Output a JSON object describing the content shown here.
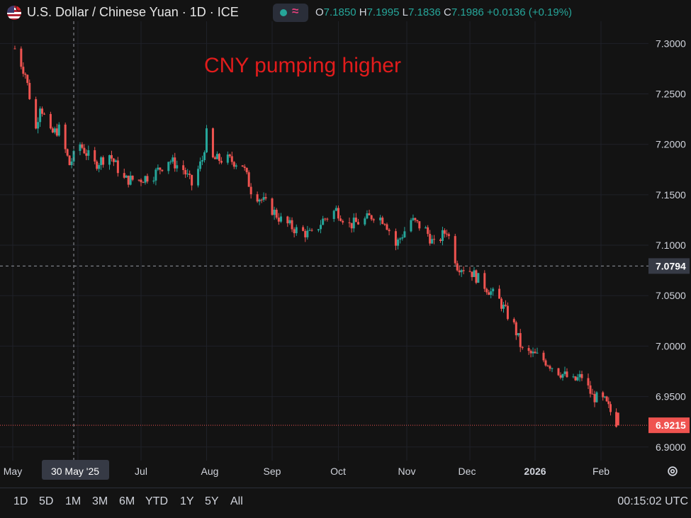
{
  "header": {
    "symbol": "U.S. Dollar / Chinese Yuan · 1D · ICE",
    "icon": "us-flag-icon",
    "indicator_icon": "wave-icon",
    "o_label": "O",
    "o_value": "7.1850",
    "h_label": "H",
    "h_value": "7.1995",
    "l_label": "L",
    "l_value": "7.1836",
    "c_label": "C",
    "c_value": "7.1986",
    "change": "+0.0136 (+0.19%)"
  },
  "annotation": "CNY pumping higher",
  "crosshair": {
    "date_label": "30 May '25",
    "price_label": "7.0794"
  },
  "last_price_label": "6.9215",
  "time_ranges": [
    "1D",
    "5D",
    "1M",
    "3M",
    "6M",
    "YTD",
    "1Y",
    "5Y",
    "All"
  ],
  "clock": "00:15:02 UTC",
  "colors": {
    "up": "#26a69a",
    "down": "#ef5350",
    "annotation": "#e21c1c",
    "background": "#131313",
    "grid": "#1f2128"
  },
  "chart_data": {
    "type": "candlestick",
    "title": "U.S. Dollar / Chinese Yuan · 1D · ICE",
    "x_ticks": [
      "May",
      "30 May '25",
      "Jul",
      "Aug",
      "Sep",
      "Oct",
      "Nov",
      "Dec",
      "2026",
      "Feb"
    ],
    "y_ticks": [
      "7.3000",
      "7.2500",
      "7.2000",
      "7.1500",
      "7.1000",
      "7.0794",
      "7.0500",
      "7.0000",
      "6.9500",
      "6.9215",
      "6.9000"
    ],
    "ylim": [
      6.89,
      7.315
    ],
    "grid": true,
    "crosshair_price": 7.0794,
    "last_price": 6.9215,
    "close_path": [
      [
        "2025-05-02",
        7.295
      ],
      [
        "2025-05-07",
        7.27
      ],
      [
        "2025-05-12",
        7.215
      ],
      [
        "2025-05-14",
        7.24
      ],
      [
        "2025-05-19",
        7.21
      ],
      [
        "2025-05-23",
        7.215
      ],
      [
        "2025-05-28",
        7.18
      ],
      [
        "2025-06-02",
        7.2
      ],
      [
        "2025-06-09",
        7.18
      ],
      [
        "2025-06-16",
        7.19
      ],
      [
        "2025-06-23",
        7.165
      ],
      [
        "2025-06-30",
        7.165
      ],
      [
        "2025-07-07",
        7.17
      ],
      [
        "2025-07-14",
        7.185
      ],
      [
        "2025-07-21",
        7.175
      ],
      [
        "2025-07-25",
        7.16
      ],
      [
        "2025-07-30",
        7.185
      ],
      [
        "2025-08-01",
        7.21
      ],
      [
        "2025-08-04",
        7.185
      ],
      [
        "2025-08-11",
        7.185
      ],
      [
        "2025-08-18",
        7.18
      ],
      [
        "2025-08-22",
        7.155
      ],
      [
        "2025-08-27",
        7.145
      ],
      [
        "2025-09-01",
        7.135
      ],
      [
        "2025-09-05",
        7.125
      ],
      [
        "2025-09-12",
        7.115
      ],
      [
        "2025-09-19",
        7.11
      ],
      [
        "2025-09-24",
        7.125
      ],
      [
        "2025-09-30",
        7.135
      ],
      [
        "2025-10-06",
        7.12
      ],
      [
        "2025-10-13",
        7.125
      ],
      [
        "2025-10-17",
        7.13
      ],
      [
        "2025-10-22",
        7.125
      ],
      [
        "2025-10-27",
        7.1
      ],
      [
        "2025-11-03",
        7.125
      ],
      [
        "2025-11-10",
        7.115
      ],
      [
        "2025-11-14",
        7.1
      ],
      [
        "2025-11-20",
        7.115
      ],
      [
        "2025-11-25",
        7.08
      ],
      [
        "2025-12-01",
        7.075
      ],
      [
        "2025-12-08",
        7.06
      ],
      [
        "2025-12-15",
        7.045
      ],
      [
        "2025-12-22",
        7.02
      ],
      [
        "2025-12-26",
        6.995
      ],
      [
        "2026-01-02",
        6.99
      ],
      [
        "2026-01-06",
        6.985
      ],
      [
        "2026-01-12",
        6.975
      ],
      [
        "2026-01-19",
        6.965
      ],
      [
        "2026-01-23",
        6.97
      ],
      [
        "2026-01-28",
        6.95
      ],
      [
        "2026-02-03",
        6.945
      ],
      [
        "2026-02-06",
        6.935
      ],
      [
        "2026-02-10",
        6.9215
      ]
    ]
  }
}
